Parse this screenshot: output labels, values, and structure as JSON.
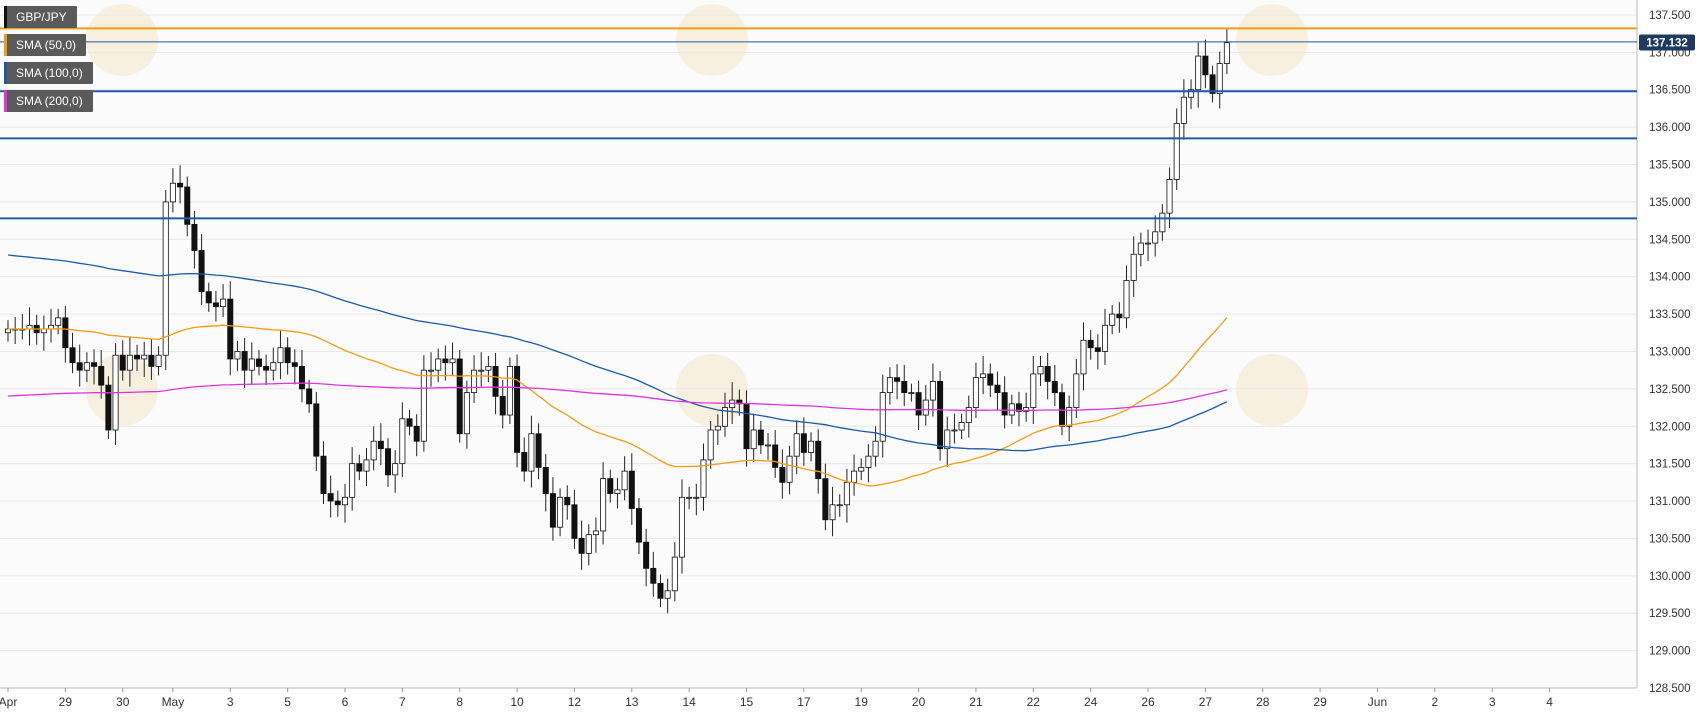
{
  "chart_data": {
    "type": "candlestick",
    "symbol": "GBP/JPY",
    "indicators": [
      {
        "name": "SMA (50,0)",
        "color": "#f39c12"
      },
      {
        "name": "SMA (100,0)",
        "color": "#1f5aa6"
      },
      {
        "name": "SMA (200,0)",
        "color": "#e033e0"
      }
    ],
    "ylim": [
      128.5,
      137.7
    ],
    "y_ticks": [
      "137.500",
      "137.000",
      "136.500",
      "136.000",
      "135.500",
      "135.000",
      "134.500",
      "134.000",
      "133.500",
      "133.000",
      "132.500",
      "132.000",
      "131.500",
      "131.000",
      "130.500",
      "130.000",
      "129.500",
      "129.000",
      "128.500"
    ],
    "x_labels": [
      "Apr",
      "29",
      "30",
      "May",
      "3",
      "5",
      "6",
      "7",
      "8",
      "10",
      "12",
      "13",
      "14",
      "15",
      "17",
      "19",
      "20",
      "21",
      "22",
      "24",
      "26",
      "27",
      "28",
      "29",
      "Jun",
      "2",
      "3",
      "4"
    ],
    "x_label_index": [
      0,
      8,
      16,
      23,
      31,
      39,
      47,
      55,
      63,
      71,
      79,
      87,
      95,
      103,
      111,
      119,
      127,
      135,
      143,
      151,
      159,
      167,
      175,
      183,
      191,
      199,
      207,
      215
    ],
    "last_price": "137.132",
    "horizontal_levels": [
      {
        "value": 137.32,
        "color": "#f39c12"
      },
      {
        "value": 137.14,
        "color": "#1f5aa6"
      },
      {
        "value": 136.48,
        "color": "#1f5aa6"
      },
      {
        "value": 135.85,
        "color": "#1f5aa6"
      },
      {
        "value": 134.78,
        "color": "#1f5aa6"
      }
    ],
    "close": [
      133.3,
      133.3,
      133.3,
      133.35,
      133.25,
      133.3,
      133.35,
      133.45,
      133.05,
      132.85,
      132.75,
      132.85,
      132.8,
      132.55,
      131.95,
      132.95,
      132.75,
      132.95,
      132.9,
      132.95,
      132.8,
      132.95,
      135.0,
      135.25,
      135.2,
      134.7,
      134.35,
      133.8,
      133.65,
      133.6,
      133.7,
      132.9,
      133.0,
      132.75,
      132.9,
      132.8,
      132.75,
      132.85,
      133.05,
      132.85,
      132.8,
      132.5,
      132.3,
      131.6,
      131.1,
      131.0,
      130.95,
      131.05,
      131.5,
      131.4,
      131.55,
      131.8,
      131.7,
      131.35,
      131.5,
      132.1,
      132.0,
      131.8,
      132.75,
      132.75,
      132.9,
      132.85,
      132.9,
      131.9,
      132.45,
      132.75,
      132.75,
      132.8,
      132.4,
      132.15,
      132.8,
      131.65,
      131.4,
      131.9,
      131.45,
      131.1,
      130.65,
      131.05,
      130.95,
      130.5,
      130.3,
      130.55,
      130.6,
      131.3,
      131.1,
      131.15,
      131.4,
      130.9,
      130.45,
      130.1,
      129.9,
      129.7,
      129.8,
      130.25,
      131.05,
      131.05,
      131.05,
      131.55,
      131.95,
      132.0,
      132.25,
      132.35,
      132.3,
      131.7,
      131.95,
      131.75,
      131.75,
      131.45,
      131.25,
      131.6,
      131.9,
      131.65,
      131.8,
      131.3,
      130.75,
      130.95,
      130.95,
      131.25,
      131.4,
      131.45,
      131.6,
      131.8,
      132.45,
      132.65,
      132.6,
      132.45,
      132.45,
      132.15,
      132.35,
      132.6,
      131.7,
      131.95,
      131.95,
      132.05,
      132.25,
      132.65,
      132.7,
      132.55,
      132.45,
      132.15,
      132.3,
      132.2,
      132.25,
      132.7,
      132.8,
      132.6,
      132.45,
      132.0,
      132.25,
      132.7,
      133.15,
      133.05,
      133.0,
      133.35,
      133.5,
      133.45,
      133.95,
      134.3,
      134.45,
      134.45,
      134.6,
      134.85,
      135.3,
      136.05,
      136.4,
      136.5,
      136.95,
      136.7,
      136.45,
      136.85,
      137.13
    ]
  }
}
